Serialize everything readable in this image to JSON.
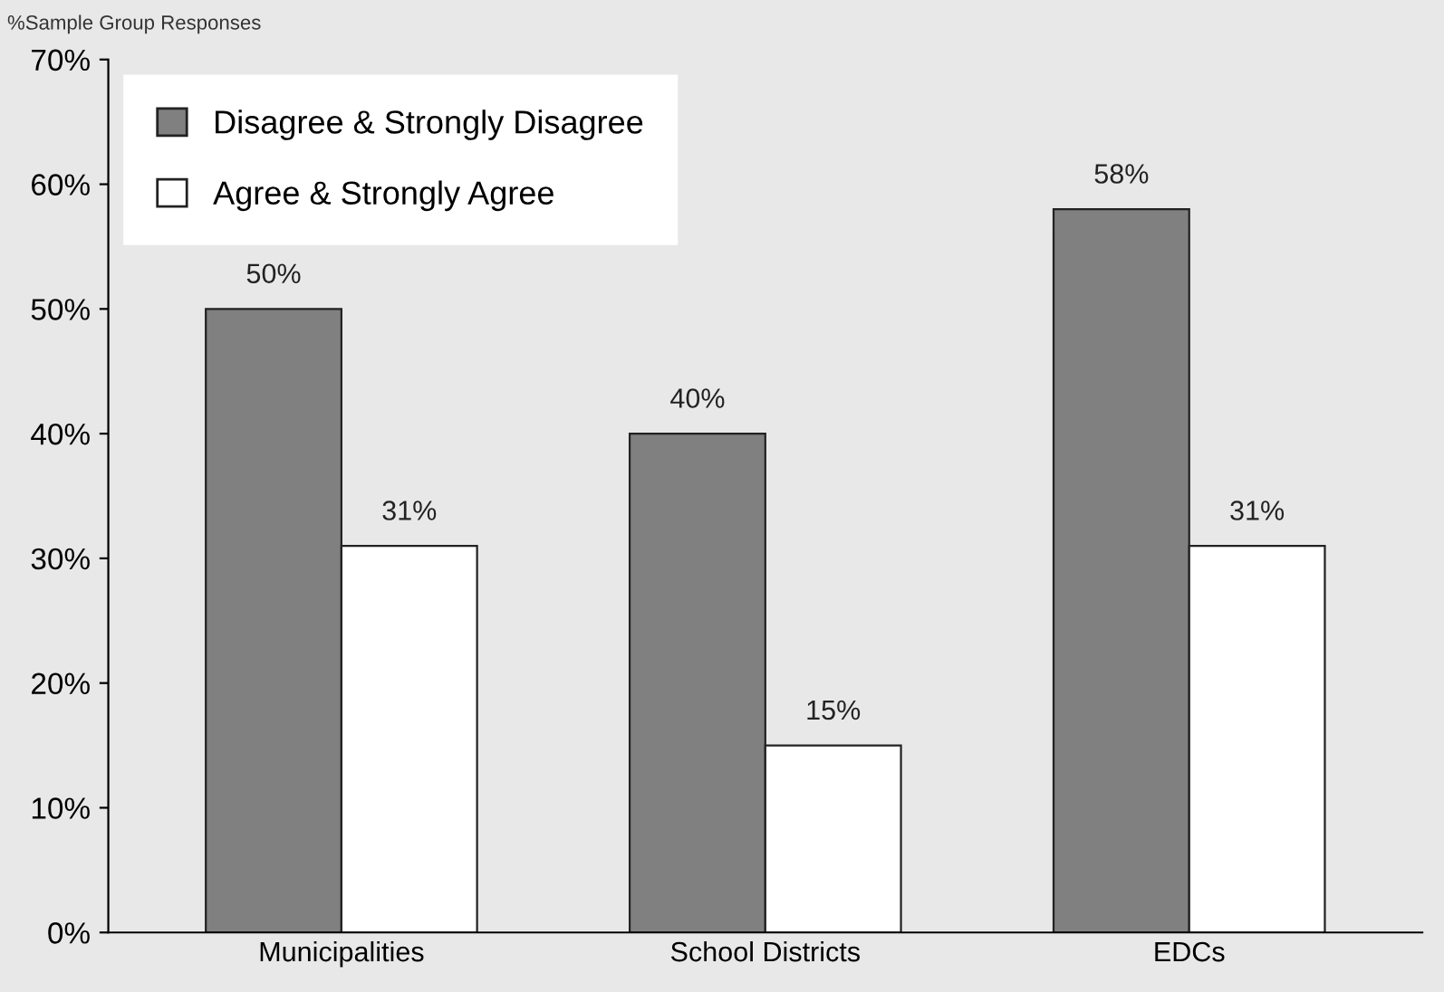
{
  "chart_data": {
    "type": "bar",
    "ylabel": "%Sample Group Responses",
    "categories": [
      "Municipalities",
      "School Districts",
      "EDCs"
    ],
    "series": [
      {
        "name": "Disagree & Strongly Disagree",
        "color": "#808080",
        "values": [
          50,
          40,
          58
        ],
        "value_labels": [
          "50%",
          "40%",
          "58%"
        ]
      },
      {
        "name": "Agree & Strongly Agree",
        "color": "#ffffff",
        "values": [
          31,
          15,
          31
        ],
        "value_labels": [
          "31%",
          "15%",
          "31%"
        ]
      }
    ],
    "ylim": [
      0,
      70
    ],
    "yticks": [
      {
        "value": 0,
        "label": "0%"
      },
      {
        "value": 10,
        "label": "10%"
      },
      {
        "value": 20,
        "label": "20%"
      },
      {
        "value": 30,
        "label": "30%"
      },
      {
        "value": 40,
        "label": "40%"
      },
      {
        "value": 50,
        "label": "50%"
      },
      {
        "value": 60,
        "label": "60%"
      },
      {
        "value": 70,
        "label": "70%"
      }
    ],
    "grid": false,
    "legend": "top left"
  }
}
